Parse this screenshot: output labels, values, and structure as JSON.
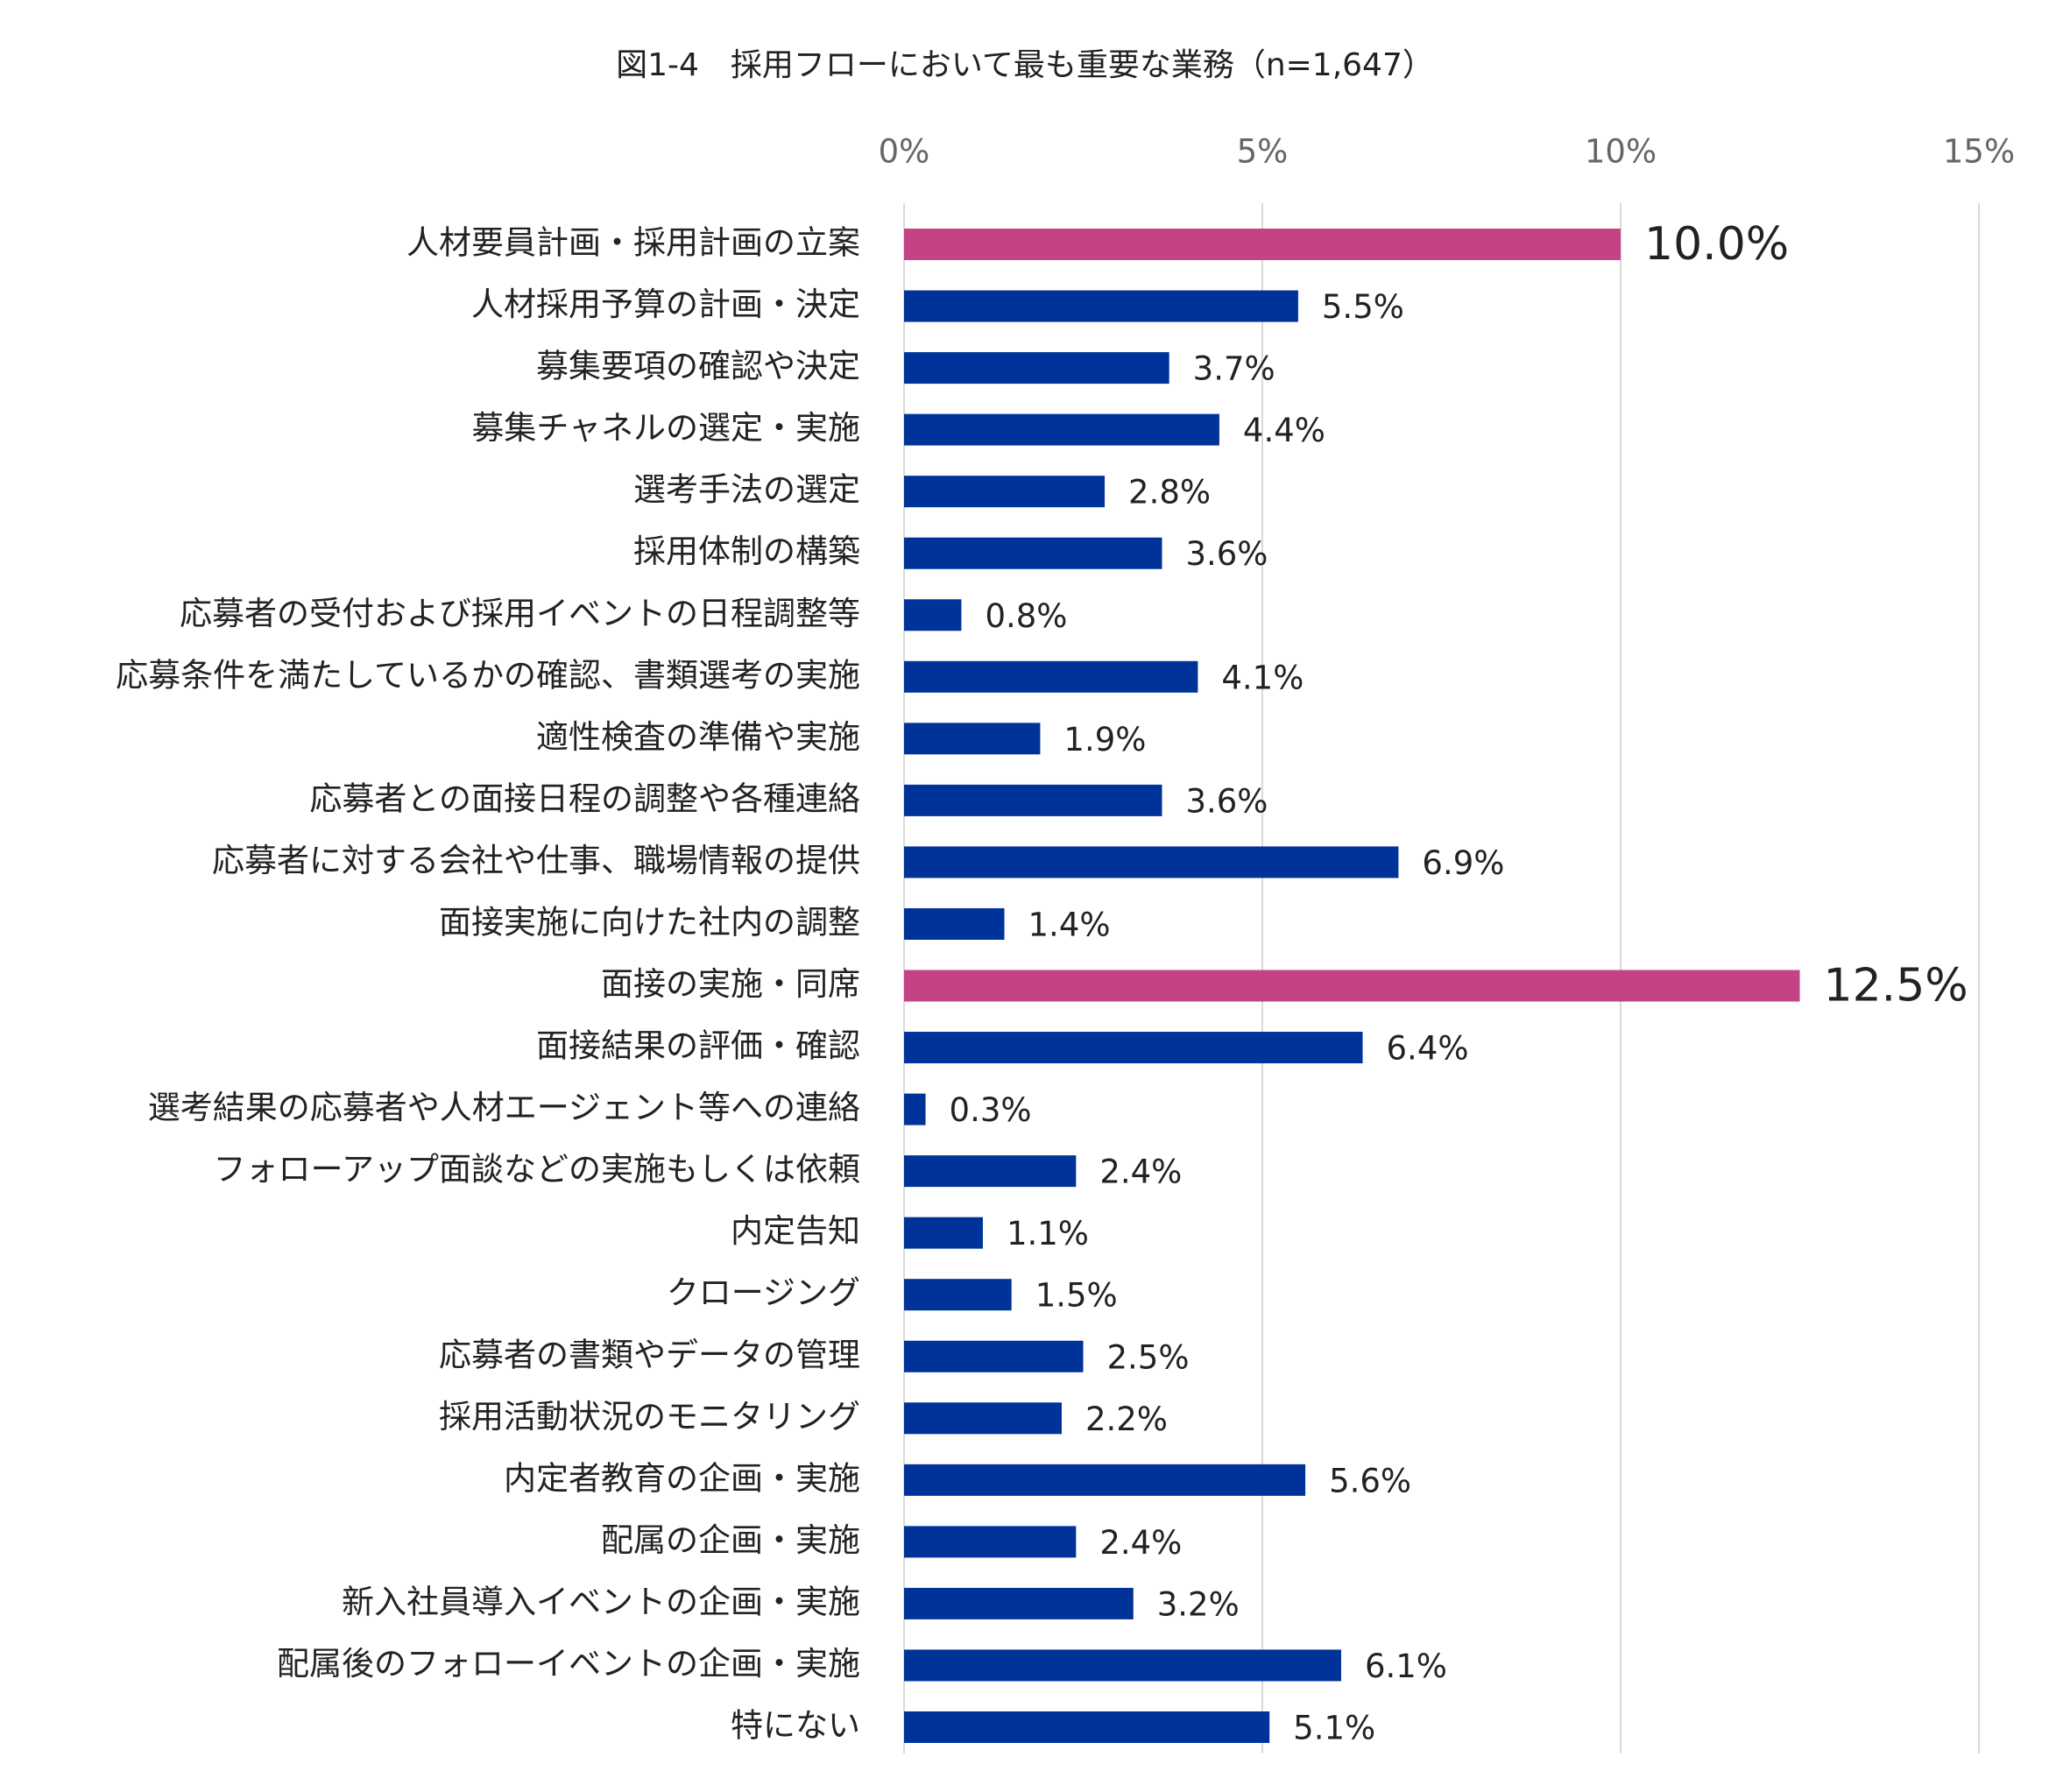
{
  "chart_data": {
    "type": "bar",
    "orientation": "horizontal",
    "title": "図1-4　採用フローにおいて最も重要な業務（n=1,647）",
    "categories": [
      "人材要員計画・採用計画の立案",
      "人材採用予算の計画・決定",
      "募集要項の確認や決定",
      "募集チャネルの選定・実施",
      "選考手法の選定",
      "採用体制の構築",
      "応募者の受付および採用イベントの日程調整等",
      "応募条件を満たしているかの確認、書類選考の実施",
      "適性検査の準備や実施",
      "応募者との面接日程の調整や各種連絡",
      "応募者に対する会社や仕事、職場情報の提供",
      "面接実施に向けた社内の調整",
      "面接の実施・同席",
      "面接結果の評価・確認",
      "選考結果の応募者や人材エージェント等への連絡",
      "フォローアップ面談などの実施もしくは依頼",
      "内定告知",
      "クロージング",
      "応募者の書類やデータの管理",
      "採用活動状況のモニタリング",
      "内定者教育の企画・実施",
      "配属の企画・実施",
      "新入社員導入イベントの企画・実施",
      "配属後のフォローイベントの企画・実施",
      "特にない"
    ],
    "values": [
      10.0,
      5.5,
      3.7,
      4.4,
      2.8,
      3.6,
      0.8,
      4.1,
      1.9,
      3.6,
      6.9,
      1.4,
      12.5,
      6.4,
      0.3,
      2.4,
      1.1,
      1.5,
      2.5,
      2.2,
      5.6,
      2.4,
      3.2,
      6.1,
      5.1
    ],
    "value_labels": [
      "10.0%",
      "5.5%",
      "3.7%",
      "4.4%",
      "2.8%",
      "3.6%",
      "0.8%",
      "4.1%",
      "1.9%",
      "3.6%",
      "6.9%",
      "1.4%",
      "12.5%",
      "6.4%",
      "0.3%",
      "2.4%",
      "1.1%",
      "1.5%",
      "2.5%",
      "2.2%",
      "5.6%",
      "2.4%",
      "3.2%",
      "6.1%",
      "5.1%"
    ],
    "colors": [
      "#c44384",
      "#003399",
      "#003399",
      "#003399",
      "#003399",
      "#003399",
      "#003399",
      "#003399",
      "#003399",
      "#003399",
      "#003399",
      "#003399",
      "#c44384",
      "#003399",
      "#003399",
      "#003399",
      "#003399",
      "#003399",
      "#003399",
      "#003399",
      "#003399",
      "#003399",
      "#003399",
      "#003399",
      "#003399"
    ],
    "xlim": [
      0,
      15
    ],
    "xticks": [
      {
        "value": 0,
        "label": "0%"
      },
      {
        "value": 5,
        "label": "5%"
      },
      {
        "value": 10,
        "label": "10%"
      },
      {
        "value": 15,
        "label": "15%"
      }
    ],
    "grid": true
  }
}
